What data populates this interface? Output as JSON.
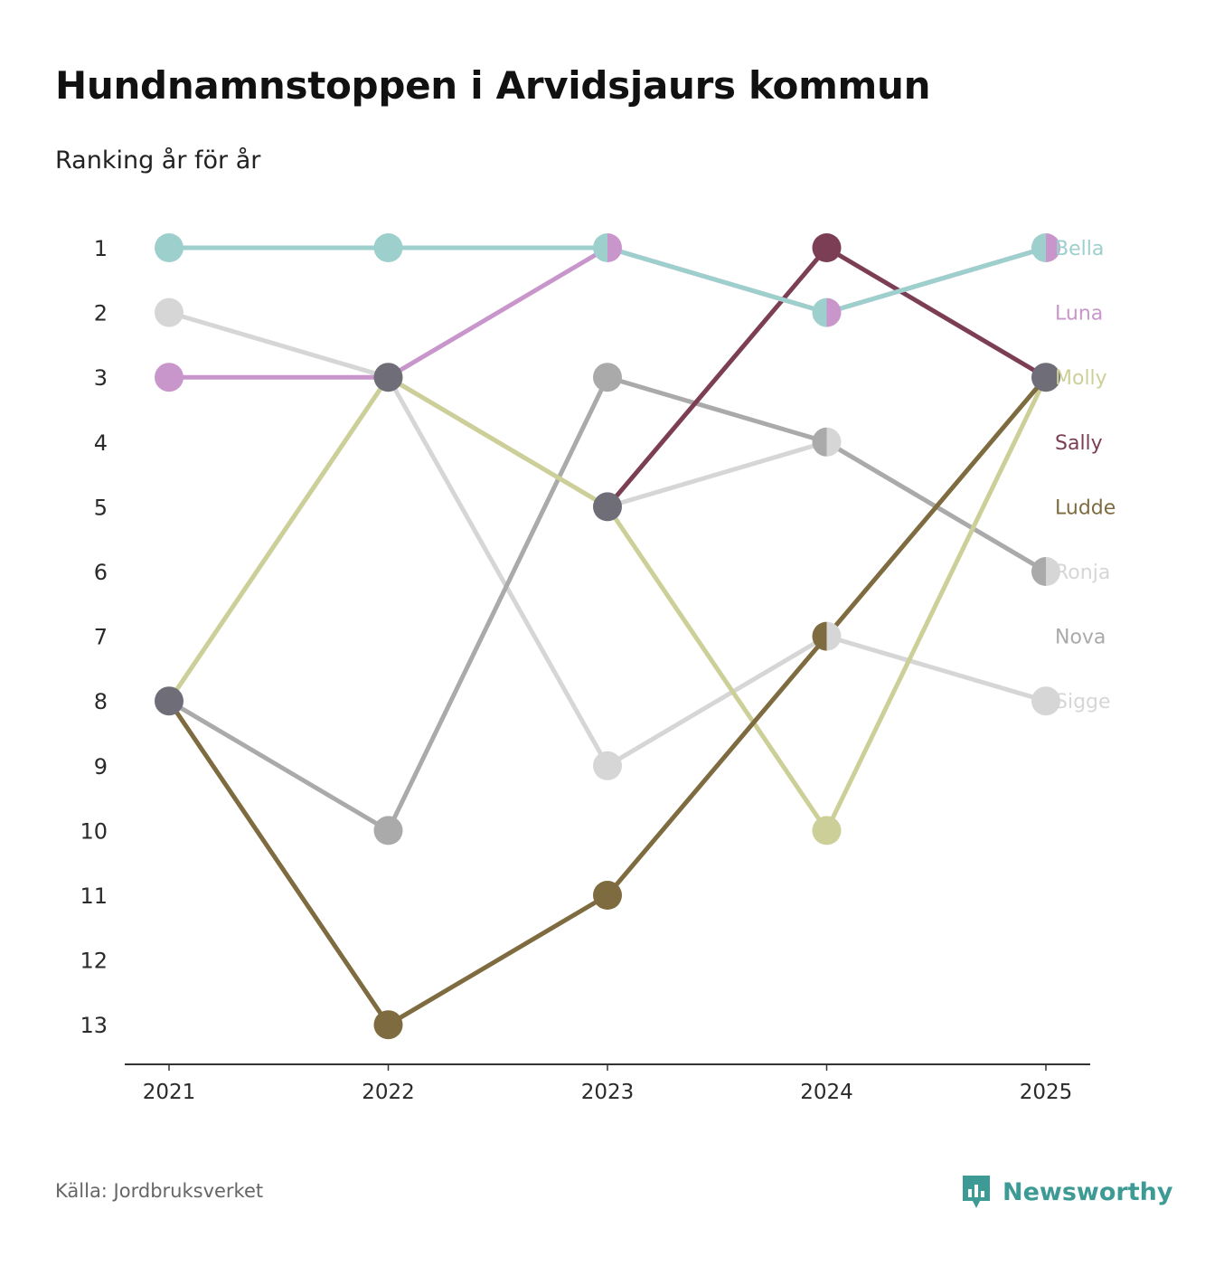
{
  "title": "Hundnamnstoppen i Arvidsjaurs kommun",
  "subtitle": "Ranking år för år",
  "source": "Källa: Jordbruksverket",
  "brand": {
    "name": "Newsworthy",
    "icon": "newsworthy-logo-icon"
  },
  "chart_data": {
    "type": "line",
    "title": "Hundnamnstoppen i Arvidsjaurs kommun",
    "subtitle": "Ranking år för år",
    "xlabel": "",
    "ylabel": "",
    "x": [
      "2021",
      "2022",
      "2023",
      "2024",
      "2025"
    ],
    "yticks": [
      "1",
      "2",
      "3",
      "4",
      "5",
      "6",
      "7",
      "8",
      "9",
      "10",
      "11",
      "12",
      "13"
    ],
    "ylim": [
      1,
      13
    ],
    "y_inverted": true,
    "legend": "right",
    "series": [
      {
        "name": "Bella",
        "color": "#9dcfcd",
        "values": [
          1,
          1,
          1,
          2,
          1
        ]
      },
      {
        "name": "Luna",
        "color": "#c996cc",
        "values": [
          3,
          3,
          1,
          2,
          1
        ]
      },
      {
        "name": "Molly",
        "color": "#cdcf98",
        "values": [
          8,
          3,
          5,
          10,
          3
        ]
      },
      {
        "name": "Sally",
        "color": "#7c3e54",
        "values": [
          null,
          null,
          5,
          1,
          3
        ]
      },
      {
        "name": "Ludde",
        "color": "#7e6b3f",
        "values": [
          8,
          13,
          11,
          7,
          3
        ]
      },
      {
        "name": "Ronja",
        "color": "#d6d6d6",
        "values": [
          2,
          3,
          9,
          7,
          8
        ]
      },
      {
        "name": "Nova",
        "color": "#aaaaaa",
        "values": [
          8,
          10,
          3,
          4,
          6
        ]
      },
      {
        "name": "Sigge",
        "color": "#d6d6d6",
        "values": [
          8,
          3,
          5,
          4,
          6
        ]
      }
    ],
    "overlap_color": "#6f6e78"
  }
}
